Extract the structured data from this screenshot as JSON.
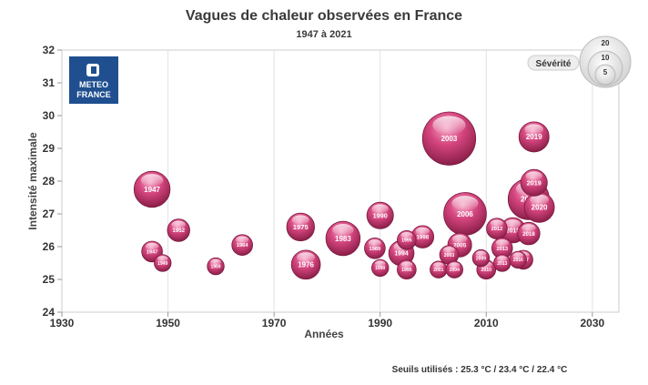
{
  "chart_data": {
    "type": "scatter",
    "title": "Vagues de chaleur observées en France",
    "subtitle": "1947 à 2021",
    "xlabel": "Années",
    "ylabel": "Intensité maximale",
    "xlim": [
      1930,
      2035
    ],
    "ylim": [
      24,
      32
    ],
    "xticks": [
      "1930",
      "1950",
      "1970",
      "1990",
      "2010",
      "2030"
    ],
    "yticks": [
      "24",
      "25",
      "26",
      "27",
      "28",
      "29",
      "30",
      "31",
      "32"
    ],
    "grid": "vertical",
    "bubble_color": "#d6467f",
    "size_legend": {
      "label": "Sévérité",
      "sizes": [
        "20",
        "10",
        "5"
      ]
    },
    "footnote": "Seuils utilisés : 25.3 °C / 23.4 °C / 22.4 °C",
    "logo_text": [
      "METEO",
      "FRANCE"
    ],
    "points": [
      {
        "label": "1947",
        "x": 1947,
        "y": 27.75,
        "size": 18
      },
      {
        "label": "1947",
        "x": 1947,
        "y": 25.85,
        "size": 5
      },
      {
        "label": "1949",
        "x": 1949,
        "y": 25.5,
        "size": 3
      },
      {
        "label": "1952",
        "x": 1952,
        "y": 26.5,
        "size": 6
      },
      {
        "label": "1959",
        "x": 1959,
        "y": 25.4,
        "size": 3
      },
      {
        "label": "1964",
        "x": 1964,
        "y": 26.05,
        "size": 5
      },
      {
        "label": "1975",
        "x": 1975,
        "y": 26.6,
        "size": 10
      },
      {
        "label": "1976",
        "x": 1976,
        "y": 25.45,
        "size": 11
      },
      {
        "label": "1983",
        "x": 1983,
        "y": 26.25,
        "size": 16
      },
      {
        "label": "1989",
        "x": 1989,
        "y": 25.95,
        "size": 5
      },
      {
        "label": "1990",
        "x": 1990,
        "y": 26.95,
        "size": 9
      },
      {
        "label": "1990",
        "x": 1990,
        "y": 25.35,
        "size": 3
      },
      {
        "label": "1994",
        "x": 1994,
        "y": 25.8,
        "size": 8
      },
      {
        "label": "1995",
        "x": 1995,
        "y": 25.3,
        "size": 4
      },
      {
        "label": "1995",
        "x": 1995,
        "y": 26.2,
        "size": 4
      },
      {
        "label": "1998",
        "x": 1998,
        "y": 26.3,
        "size": 6
      },
      {
        "label": "2001",
        "x": 2001,
        "y": 25.3,
        "size": 3
      },
      {
        "label": "2003",
        "x": 2003,
        "y": 29.3,
        "size": 42
      },
      {
        "label": "2003",
        "x": 2003,
        "y": 25.75,
        "size": 4
      },
      {
        "label": "2004",
        "x": 2004,
        "y": 25.3,
        "size": 3
      },
      {
        "label": "2005",
        "x": 2005,
        "y": 26.05,
        "size": 7
      },
      {
        "label": "2006",
        "x": 2006,
        "y": 27.0,
        "size": 26
      },
      {
        "label": "2009",
        "x": 2009,
        "y": 25.65,
        "size": 3
      },
      {
        "label": "2010",
        "x": 2010,
        "y": 25.3,
        "size": 4
      },
      {
        "label": "2012",
        "x": 2012,
        "y": 26.55,
        "size": 5
      },
      {
        "label": "2013",
        "x": 2013,
        "y": 25.5,
        "size": 3
      },
      {
        "label": "2013",
        "x": 2013,
        "y": 25.95,
        "size": 5
      },
      {
        "label": "2015",
        "x": 2015,
        "y": 26.5,
        "size": 8
      },
      {
        "label": "2016",
        "x": 2016,
        "y": 25.6,
        "size": 3
      },
      {
        "label": "2017",
        "x": 2017,
        "y": 25.6,
        "size": 4
      },
      {
        "label": "2018",
        "x": 2018,
        "y": 26.4,
        "size": 6
      },
      {
        "label": "2019",
        "x": 2019,
        "y": 27.95,
        "size": 9
      },
      {
        "label": "2019",
        "x": 2019,
        "y": 29.35,
        "size": 12
      },
      {
        "label": "2018",
        "x": 2018,
        "y": 27.45,
        "size": 24
      },
      {
        "label": "2020",
        "x": 2020,
        "y": 27.2,
        "size": 12
      }
    ]
  }
}
